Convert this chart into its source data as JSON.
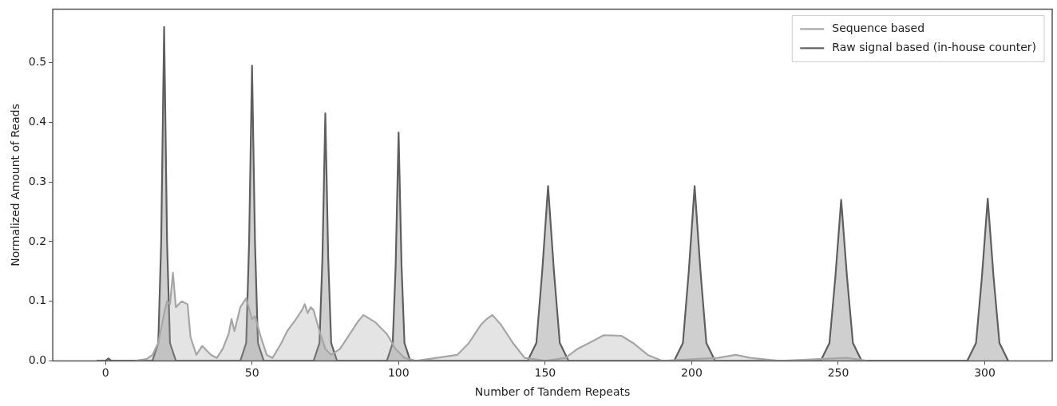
{
  "chart_data": {
    "type": "area",
    "xlabel": "Number of Tandem Repeats",
    "ylabel": "Normalized Amount of Reads",
    "xlim": [
      -18,
      323
    ],
    "xticks": [
      0,
      50,
      100,
      150,
      200,
      250,
      300
    ],
    "ylim": [
      0,
      0.59
    ],
    "yticks": [
      {
        "value": 0,
        "label": "0.0"
      },
      {
        "value": 0.1,
        "label": "0.1"
      },
      {
        "value": 0.2,
        "label": "0.2"
      },
      {
        "value": 0.3,
        "label": "0.3"
      },
      {
        "value": 0.4,
        "label": "0.4"
      },
      {
        "value": 0.5,
        "label": "0.5"
      }
    ],
    "grid": false,
    "legend": "top right",
    "marker": "none",
    "line_style": "solid",
    "series": [
      {
        "name": "Sequence based",
        "color": "#a6a6a6",
        "x": [
          10,
          14,
          16,
          18,
          20,
          21,
          22,
          23,
          24,
          26,
          28,
          29,
          31,
          33,
          36,
          38,
          40,
          42,
          43,
          44,
          46,
          48,
          50,
          51,
          53,
          55,
          57,
          60,
          62,
          65,
          67,
          68,
          69,
          70,
          71,
          73,
          75,
          77,
          80,
          84,
          86,
          88,
          92,
          96,
          99,
          102,
          106,
          113,
          120,
          124,
          128,
          130,
          132,
          135,
          139,
          143,
          150,
          157,
          161,
          165,
          170,
          176,
          180,
          185,
          190,
          209,
          215,
          220,
          230,
          253,
          260
        ],
        "values": [
          0,
          0.003,
          0.01,
          0.03,
          0.08,
          0.1,
          0.095,
          0.148,
          0.09,
          0.1,
          0.095,
          0.04,
          0.01,
          0.025,
          0.01,
          0.005,
          0.02,
          0.045,
          0.07,
          0.05,
          0.09,
          0.105,
          0.07,
          0.075,
          0.04,
          0.01,
          0.005,
          0.03,
          0.05,
          0.07,
          0.085,
          0.095,
          0.08,
          0.09,
          0.085,
          0.05,
          0.02,
          0.01,
          0.02,
          0.05,
          0.065,
          0.077,
          0.065,
          0.045,
          0.02,
          0.005,
          0,
          0.005,
          0.01,
          0.03,
          0.06,
          0.07,
          0.077,
          0.06,
          0.03,
          0.005,
          0,
          0.005,
          0.02,
          0.03,
          0.043,
          0.042,
          0.03,
          0.01,
          0,
          0.005,
          0.01,
          0.005,
          0,
          0.005,
          0
        ]
      },
      {
        "name": "Raw signal based (in-house counter)",
        "color": "#5f5f5f",
        "x": [
          -3,
          0,
          1,
          2,
          16,
          18,
          19,
          20,
          21,
          22,
          24,
          46,
          48,
          49,
          50,
          51,
          52,
          54,
          71,
          73,
          74,
          75,
          76,
          77,
          79,
          96,
          98,
          99,
          100,
          101,
          102,
          104,
          144,
          147,
          149,
          151,
          153,
          155,
          158,
          194,
          197,
          199,
          201,
          203,
          205,
          208,
          244,
          247,
          249,
          251,
          253,
          255,
          258,
          294,
          297,
          299,
          301,
          303,
          305,
          308
        ],
        "values": [
          0,
          0,
          0.004,
          0,
          0,
          0.03,
          0.2,
          0.56,
          0.2,
          0.03,
          0,
          0,
          0.03,
          0.2,
          0.495,
          0.2,
          0.03,
          0,
          0,
          0.03,
          0.17,
          0.415,
          0.17,
          0.03,
          0,
          0,
          0.03,
          0.16,
          0.383,
          0.16,
          0.03,
          0,
          0,
          0.03,
          0.15,
          0.293,
          0.15,
          0.03,
          0,
          0,
          0.03,
          0.15,
          0.293,
          0.15,
          0.03,
          0,
          0,
          0.03,
          0.14,
          0.27,
          0.14,
          0.03,
          0,
          0,
          0.03,
          0.14,
          0.272,
          0.14,
          0.03,
          0
        ]
      }
    ]
  }
}
